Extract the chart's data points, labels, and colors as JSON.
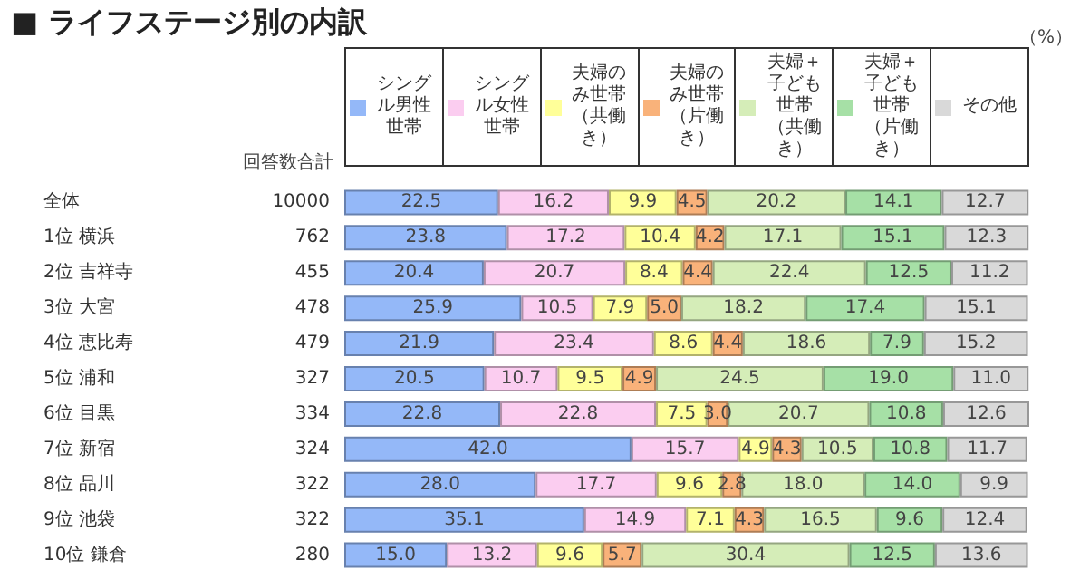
{
  "chart_data": {
    "type": "bar",
    "orientation": "horizontal",
    "stacked": true,
    "legend": "top",
    "title": "■ ライフステージ別の内訳",
    "categories": [
      "全体",
      "1位 横浜",
      "2位 吉祥寺",
      "3位 大宮",
      "4位 恵比寿",
      "5位 浦和",
      "6位 目黒",
      "7位 新宿",
      "8位 品川",
      "9位 池袋",
      "10位 鎌倉"
    ],
    "series": [
      {
        "name": "シングル男性世帯",
        "color": "#94b8f8",
        "values": [
          22.5,
          23.8,
          20.4,
          25.9,
          21.9,
          20.5,
          22.8,
          42.0,
          28.0,
          35.1,
          15.0
        ],
        "value_labels": [
          "22.5",
          "23.8",
          "20.4",
          "25.9",
          "21.9",
          "20.5",
          "22.8",
          "42.0",
          "28.0",
          "35.1",
          "15.0"
        ]
      },
      {
        "name": "シングル女性世帯",
        "color": "#fbcdf0",
        "values": [
          16.2,
          17.2,
          20.7,
          10.5,
          23.4,
          10.7,
          22.8,
          15.7,
          17.7,
          14.9,
          13.2
        ],
        "value_labels": [
          "16.2",
          "17.2",
          "20.7",
          "10.5",
          "23.4",
          "10.7",
          "22.8",
          "15.7",
          "17.7",
          "14.9",
          "13.2"
        ]
      },
      {
        "name": "夫婦のみ世帯（共働き）",
        "color": "#ffff99",
        "values": [
          9.9,
          10.4,
          8.4,
          7.9,
          8.6,
          9.5,
          7.5,
          4.9,
          9.6,
          7.1,
          9.6
        ],
        "value_labels": [
          "9.9",
          "10.4",
          "8.4",
          "7.9",
          "8.6",
          "9.5",
          "7.5",
          "4.9",
          "9.6",
          "7.1",
          "9.6"
        ]
      },
      {
        "name": "夫婦のみ世帯（片働き）",
        "color": "#f9b27a",
        "values": [
          4.5,
          4.2,
          4.4,
          5.0,
          4.4,
          4.9,
          3.0,
          4.3,
          2.8,
          4.3,
          5.7
        ],
        "value_labels": [
          "4.5",
          "4.2",
          "4.4",
          "5.0",
          "4.4",
          "4.9",
          "3.0",
          "4.3",
          "2.8",
          "4.3",
          "5.7"
        ]
      },
      {
        "name": "夫婦＋子ども世帯（共働き）",
        "color": "#d5edb8",
        "values": [
          20.2,
          17.1,
          22.4,
          18.2,
          18.6,
          24.5,
          20.7,
          10.5,
          18.0,
          16.5,
          30.4
        ],
        "value_labels": [
          "20.2",
          "17.1",
          "22.4",
          "18.2",
          "18.6",
          "24.5",
          "20.7",
          "10.5",
          "18.0",
          "16.5",
          "30.4"
        ]
      },
      {
        "name": "夫婦＋子ども世帯（片働き）",
        "color": "#a6e0a6",
        "values": [
          14.1,
          15.1,
          12.5,
          17.4,
          7.9,
          19.0,
          10.8,
          10.8,
          14.0,
          9.6,
          12.5
        ],
        "value_labels": [
          "14.1",
          "15.1",
          "12.5",
          "17.4",
          "7.9",
          "19.0",
          "10.8",
          "10.8",
          "14.0",
          "9.6",
          "12.5"
        ]
      },
      {
        "name": "その他",
        "color": "#d9d9d9",
        "values": [
          12.7,
          12.3,
          11.2,
          15.1,
          15.2,
          11.0,
          12.6,
          11.7,
          9.9,
          12.4,
          13.6
        ],
        "value_labels": [
          "12.7",
          "12.3",
          "11.2",
          "15.1",
          "15.2",
          "11.0",
          "12.6",
          "11.7",
          "9.9",
          "12.4",
          "13.6"
        ]
      }
    ],
    "annotations": [
      "（%）",
      "回答数合計",
      "10000",
      "762",
      "455",
      "478",
      "479",
      "327",
      "334",
      "324",
      "322",
      "322",
      "280"
    ]
  }
}
